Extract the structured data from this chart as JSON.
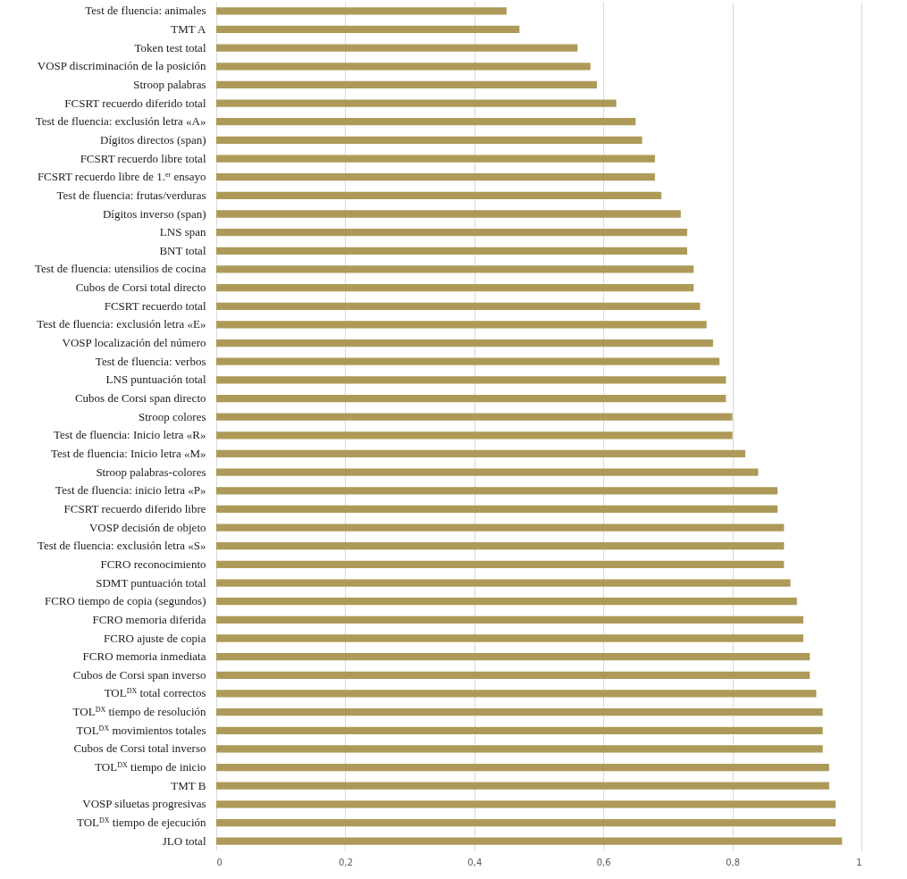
{
  "chart_data": {
    "type": "bar",
    "orientation": "horizontal",
    "categories": [
      "Test de fluencia: animales",
      "TMT A",
      "Token test total",
      "VOSP discriminación de la posición",
      "Stroop palabras",
      "FCSRT recuerdo diferido total",
      "Test de fluencia: exclusión letra «A»",
      "Dígitos directos (span)",
      "FCSRT recuerdo libre total",
      "FCSRT recuerdo libre de 1.$^{er}$ ensayo",
      "Test de fluencia: frutas/verduras",
      "Dígitos inverso (span)",
      "LNS span",
      "BNT total",
      "Test de fluencia: utensilios de cocina",
      "Cubos de Corsi total directo",
      "FCSRT recuerdo total",
      "Test de fluencia: exclusión letra «E»",
      "VOSP localización del número",
      "Test de fluencia: verbos",
      "LNS puntuación total",
      "Cubos de Corsi span directo",
      "Stroop colores",
      "Test de fluencia: Inicio letra «R»",
      "Test de fluencia: Inicio letra «M»",
      "Stroop palabras-colores",
      "Test de fluencia: inicio letra «P»",
      "FCSRT recuerdo diferido libre",
      "VOSP decisión de objeto",
      "Test de fluencia: exclusión letra «S»",
      "FCRO reconocimiento",
      "SDMT puntuación total",
      "FCRO tiempo de copia (segundos)",
      "FCRO memoria diferida",
      "FCRO ajuste de copia",
      "FCRO memoria inmediata",
      "Cubos de Corsi span inverso",
      "TOL$^{DX}$ total correctos",
      "TOL$^{DX}$ tiempo de resolución",
      "TOL$^{DX}$ movimientos totales",
      "Cubos de Corsi total inverso",
      "TOL$^{DX}$ tiempo de inicio",
      "TMT B",
      "VOSP siluetas progresivas",
      "TOL$^{DX}$ tiempo de ejecución",
      "JLO total"
    ],
    "values": [
      0.45,
      0.47,
      0.56,
      0.58,
      0.59,
      0.62,
      0.65,
      0.66,
      0.68,
      0.68,
      0.69,
      0.72,
      0.73,
      0.73,
      0.74,
      0.74,
      0.75,
      0.76,
      0.77,
      0.78,
      0.79,
      0.79,
      0.8,
      0.8,
      0.82,
      0.84,
      0.87,
      0.87,
      0.88,
      0.88,
      0.88,
      0.89,
      0.9,
      0.91,
      0.91,
      0.92,
      0.92,
      0.93,
      0.94,
      0.94,
      0.94,
      0.95,
      0.95,
      0.96,
      0.96,
      0.97
    ],
    "color": "#ae9a58",
    "xlim": [
      0,
      1
    ],
    "xticks": [
      0,
      {
        "value": 0.2,
        "label": "0,2"
      },
      {
        "value": 0.4,
        "label": "0,4"
      },
      {
        "value": 0.6,
        "label": "0,6"
      },
      {
        "value": 0.8,
        "label": "0,8"
      },
      1
    ],
    "grid": "x"
  }
}
